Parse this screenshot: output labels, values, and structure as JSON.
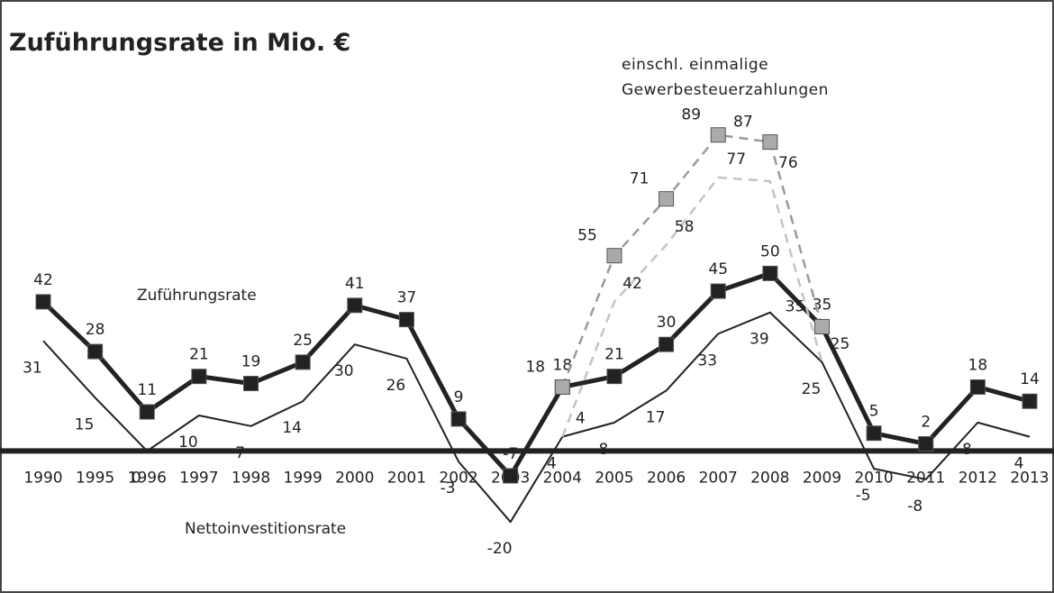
{
  "chart_data": {
    "type": "line",
    "title": "Zuführungsrate in Mio. €",
    "categories": [
      "1990",
      "1995",
      "1996",
      "1997",
      "1998",
      "1999",
      "2000",
      "2001",
      "2002",
      "2003",
      "2004",
      "2005",
      "2006",
      "2007",
      "2008",
      "2009",
      "2010",
      "2011",
      "2012",
      "2013"
    ],
    "series": [
      {
        "name": "Zuführungsrate",
        "color": "#222222",
        "values": [
          42,
          28,
          11,
          21,
          19,
          25,
          41,
          37,
          9,
          -7,
          18,
          21,
          30,
          45,
          50,
          35,
          5,
          2,
          18,
          14
        ]
      },
      {
        "name": "Nettoinvestitionsrate",
        "color": "#222222",
        "values": [
          31,
          15,
          0,
          10,
          7,
          14,
          30,
          26,
          -3,
          -20,
          4,
          8,
          17,
          33,
          39,
          25,
          -5,
          -8,
          8,
          4
        ]
      },
      {
        "name": "einschl. einmalige Gewerbesteuerzahlungen",
        "color": "#9a9a9a",
        "values": [
          null,
          null,
          null,
          null,
          null,
          null,
          null,
          null,
          null,
          null,
          18,
          55,
          71,
          89,
          87,
          35,
          null,
          null,
          null,
          null
        ]
      },
      {
        "color": "#c4c4c4",
        "values": [
          null,
          null,
          null,
          null,
          null,
          null,
          null,
          null,
          null,
          null,
          4,
          42,
          58,
          77,
          76,
          25,
          null,
          null,
          null,
          null
        ]
      }
    ],
    "ylim": [
      -40,
      127
    ]
  }
}
